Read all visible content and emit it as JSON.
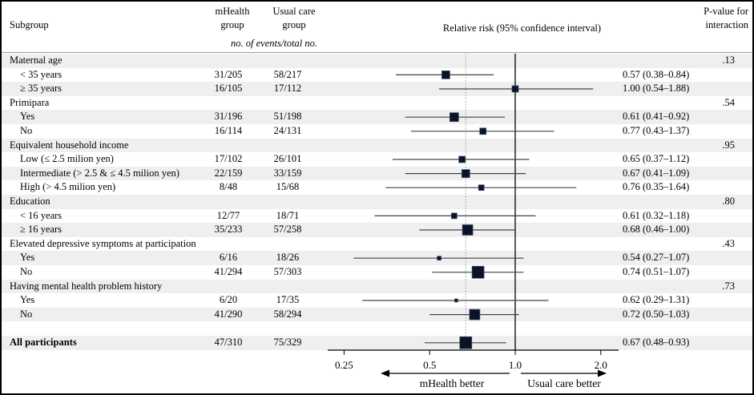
{
  "header": {
    "subgroup": "Subgroup",
    "mhealth_group": "mHealth\ngroup",
    "usual_care_group": "Usual care\ngroup",
    "events_note": "no. of events/total no.",
    "relative_risk": "Relative risk (95% confidence interval)",
    "p_value": "P-value for\ninteraction"
  },
  "colors": {
    "stripe": "#efefef",
    "marker_fill": "#0d1326",
    "marker_edge": "#35536f",
    "ci_line": "#444444",
    "reference_line": "#000000",
    "dotted_line": "#999999",
    "axis_line": "#000000"
  },
  "chart_data": {
    "type": "forest",
    "x_scale": "log",
    "title": "Relative risk (95% confidence interval)",
    "axis_tick_values": [
      0.25,
      0.5,
      1.0,
      2.0
    ],
    "axis_tick_labels": [
      "0.25",
      "0.5",
      "1.0",
      "2.0"
    ],
    "reference_line": 1.0,
    "overall_estimate_line": 0.67,
    "arrow_left_label": "mHealth better",
    "arrow_right_label": "Usual care better",
    "rows": [
      {
        "type": "group",
        "label": "Maternal age",
        "p": ".13"
      },
      {
        "type": "item",
        "label": "< 35 years",
        "mhealth": "31/205",
        "usual": "58/217",
        "rr": 0.57,
        "ci_low": 0.38,
        "ci_high": 0.84,
        "rr_text": "0.57 (0.38–0.84)",
        "marker_size": 10
      },
      {
        "type": "item",
        "label": "≥ 35 years",
        "mhealth": "16/105",
        "usual": "17/112",
        "rr": 1.0,
        "ci_low": 0.54,
        "ci_high": 1.88,
        "rr_text": "1.00 (0.54–1.88)",
        "marker_size": 8
      },
      {
        "type": "group",
        "label": "Primipara",
        "p": ".54"
      },
      {
        "type": "item",
        "label": "Yes",
        "mhealth": "31/196",
        "usual": "51/198",
        "rr": 0.61,
        "ci_low": 0.41,
        "ci_high": 0.92,
        "rr_text": "0.61 (0.41–0.92)",
        "marker_size": 11
      },
      {
        "type": "item",
        "label": "No",
        "mhealth": "16/114",
        "usual": "24/131",
        "rr": 0.77,
        "ci_low": 0.43,
        "ci_high": 1.37,
        "rr_text": "0.77 (0.43–1.37)",
        "marker_size": 8
      },
      {
        "type": "group",
        "label": "Equivalent household income",
        "p": ".95"
      },
      {
        "type": "item",
        "label": "Low (≤ 2.5 milion yen)",
        "mhealth": "17/102",
        "usual": "26/101",
        "rr": 0.65,
        "ci_low": 0.37,
        "ci_high": 1.12,
        "rr_text": "0.65 (0.37–1.12)",
        "marker_size": 8
      },
      {
        "type": "item",
        "label": "Intermediate (> 2.5 & ≤ 4.5 milion yen)",
        "mhealth": "22/159",
        "usual": "33/159",
        "rr": 0.67,
        "ci_low": 0.41,
        "ci_high": 1.09,
        "rr_text": "0.67 (0.41–1.09)",
        "marker_size": 10
      },
      {
        "type": "item",
        "label": "High (> 4.5 milion yen)",
        "mhealth": "8/48",
        "usual": "15/68",
        "rr": 0.76,
        "ci_low": 0.35,
        "ci_high": 1.64,
        "rr_text": "0.76 (0.35–1.64)",
        "marker_size": 7
      },
      {
        "type": "group",
        "label": "Education",
        "p": ".80"
      },
      {
        "type": "item",
        "label": "< 16 years",
        "mhealth": "12/77",
        "usual": "18/71",
        "rr": 0.61,
        "ci_low": 0.32,
        "ci_high": 1.18,
        "rr_text": "0.61 (0.32–1.18)",
        "marker_size": 7
      },
      {
        "type": "item",
        "label": "≥ 16 years",
        "mhealth": "35/233",
        "usual": "57/258",
        "rr": 0.68,
        "ci_low": 0.46,
        "ci_high": 1.0,
        "rr_text": "0.68 (0.46–1.00)",
        "marker_size": 13
      },
      {
        "type": "group",
        "label": "Elevated depressive symptoms at participation",
        "p": ".43"
      },
      {
        "type": "item",
        "label": "Yes",
        "mhealth": "6/16",
        "usual": "18/26",
        "rr": 0.54,
        "ci_low": 0.27,
        "ci_high": 1.07,
        "rr_text": "0.54 (0.27–1.07)",
        "marker_size": 5
      },
      {
        "type": "item",
        "label": "No",
        "mhealth": "41/294",
        "usual": "57/303",
        "rr": 0.74,
        "ci_low": 0.51,
        "ci_high": 1.07,
        "rr_text": "0.74 (0.51–1.07)",
        "marker_size": 15
      },
      {
        "type": "group",
        "label": "Having mental health problem history",
        "p": ".73"
      },
      {
        "type": "item",
        "label": "Yes",
        "mhealth": "6/20",
        "usual": "17/35",
        "rr": 0.62,
        "ci_low": 0.29,
        "ci_high": 1.31,
        "rr_text": "0.62 (0.29–1.31)",
        "marker_size": 4
      },
      {
        "type": "item",
        "label": "No",
        "mhealth": "41/290",
        "usual": "58/294",
        "rr": 0.72,
        "ci_low": 0.5,
        "ci_high": 1.03,
        "rr_text": "0.72 (0.50–1.03)",
        "marker_size": 13
      },
      {
        "type": "blank",
        "label": ""
      },
      {
        "type": "summary",
        "label": "All participants",
        "mhealth": "47/310",
        "usual": "75/329",
        "rr": 0.67,
        "ci_low": 0.48,
        "ci_high": 0.93,
        "rr_text": "0.67 (0.48–0.93)",
        "marker_size": 15
      }
    ]
  }
}
